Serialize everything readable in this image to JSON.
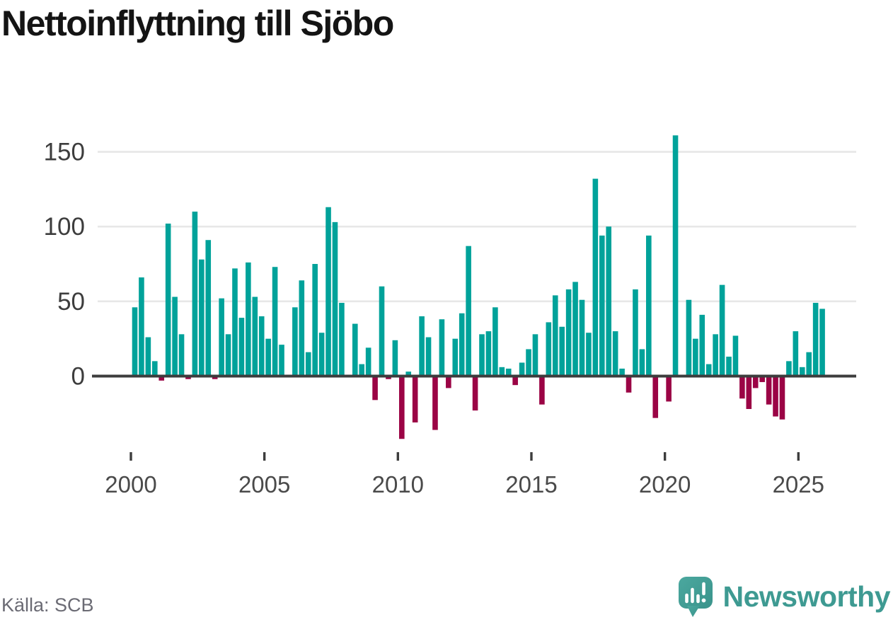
{
  "title": "Nettoinflyttning till Sjöbo",
  "footer": {
    "source": "Källa: SCB",
    "brand": "Newsworthy"
  },
  "colors": {
    "positive": "#00A29A",
    "negative": "#9B0445",
    "axis": "#3D3D3D",
    "grid": "#E7E7E7",
    "tick_label": "#4A4A4A",
    "axis_value_label": "#3D3D3D",
    "title": "#141414",
    "source": "#6B6B74",
    "brand": "#3E9A92",
    "brand_icon_top": "#4BA89F",
    "brand_icon_bottom": "#3A938B"
  },
  "chart_data": {
    "type": "bar",
    "title": "Nettoinflyttning till Sjöbo",
    "frequency": "quarterly",
    "grid": "horizontal",
    "legend": "none",
    "source": "Källa: SCB",
    "y_ticks": [
      0,
      50,
      100,
      150
    ],
    "x_tick_labels": [
      "2000",
      "2005",
      "2010",
      "2015",
      "2020",
      "2025"
    ],
    "ylim": [
      -50,
      170
    ],
    "positive_color": "#00A29A",
    "negative_color": "#9B0445",
    "categories": [
      "2000-Q1",
      "2000-Q2",
      "2000-Q3",
      "2000-Q4",
      "2001-Q1",
      "2001-Q2",
      "2001-Q3",
      "2001-Q4",
      "2002-Q1",
      "2002-Q2",
      "2002-Q3",
      "2002-Q4",
      "2003-Q1",
      "2003-Q2",
      "2003-Q3",
      "2003-Q4",
      "2004-Q1",
      "2004-Q2",
      "2004-Q3",
      "2004-Q4",
      "2005-Q1",
      "2005-Q2",
      "2005-Q3",
      "2005-Q4",
      "2006-Q1",
      "2006-Q2",
      "2006-Q3",
      "2006-Q4",
      "2007-Q1",
      "2007-Q2",
      "2007-Q3",
      "2007-Q4",
      "2008-Q1",
      "2008-Q2",
      "2008-Q3",
      "2008-Q4",
      "2009-Q1",
      "2009-Q2",
      "2009-Q3",
      "2009-Q4",
      "2010-Q1",
      "2010-Q2",
      "2010-Q3",
      "2010-Q4",
      "2011-Q1",
      "2011-Q2",
      "2011-Q3",
      "2011-Q4",
      "2012-Q1",
      "2012-Q2",
      "2012-Q3",
      "2012-Q4",
      "2013-Q1",
      "2013-Q2",
      "2013-Q3",
      "2013-Q4",
      "2014-Q1",
      "2014-Q2",
      "2014-Q3",
      "2014-Q4",
      "2015-Q1",
      "2015-Q2",
      "2015-Q3",
      "2015-Q4",
      "2016-Q1",
      "2016-Q2",
      "2016-Q3",
      "2016-Q4",
      "2017-Q1",
      "2017-Q2",
      "2017-Q3",
      "2017-Q4",
      "2018-Q1",
      "2018-Q2",
      "2018-Q3",
      "2018-Q4",
      "2019-Q1",
      "2019-Q2",
      "2019-Q3",
      "2019-Q4",
      "2020-Q1",
      "2020-Q2",
      "2020-Q3",
      "2020-Q4",
      "2021-Q1",
      "2021-Q2",
      "2021-Q3",
      "2021-Q4",
      "2022-Q1",
      "2022-Q2",
      "2022-Q3",
      "2022-Q4",
      "2023-Q1",
      "2023-Q2",
      "2023-Q3",
      "2023-Q4",
      "2024-Q1",
      "2024-Q2",
      "2024-Q3",
      "2024-Q4",
      "2025-Q1",
      "2025-Q2",
      "2025-Q3",
      "2025-Q4"
    ],
    "values": [
      46,
      66,
      26,
      10,
      -3,
      102,
      53,
      28,
      -2,
      110,
      78,
      91,
      -2,
      52,
      28,
      72,
      39,
      76,
      53,
      40,
      25,
      73,
      21,
      0,
      46,
      64,
      16,
      75,
      29,
      113,
      103,
      49,
      0,
      35,
      8,
      19,
      -16,
      60,
      -2,
      24,
      -42,
      3,
      -31,
      40,
      26,
      -36,
      38,
      -8,
      25,
      42,
      87,
      -23,
      28,
      30,
      46,
      6,
      5,
      -6,
      9,
      18,
      28,
      -19,
      36,
      54,
      33,
      58,
      63,
      51,
      29,
      132,
      94,
      100,
      30,
      5,
      -11,
      58,
      18,
      94,
      -28,
      0,
      -17,
      161,
      0,
      51,
      25,
      41,
      8,
      28,
      61,
      13,
      27,
      -15,
      -22,
      -8,
      -4,
      -19,
      -27,
      -29,
      10,
      30,
      6,
      16,
      49,
      45
    ]
  }
}
